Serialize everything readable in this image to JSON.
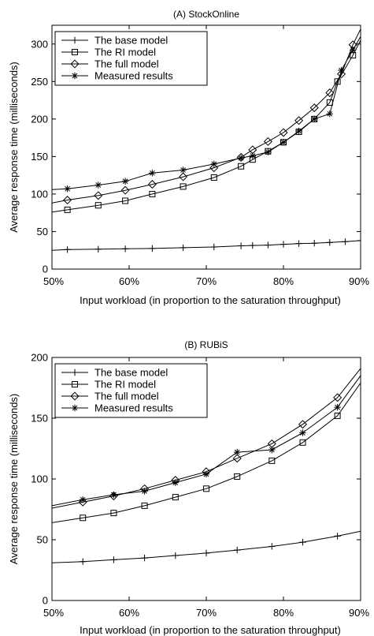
{
  "chart_data": [
    {
      "type": "line",
      "title": "(A) StockOnline",
      "xlabel": "Input workload (in proportion to the saturation throughput)",
      "ylabel": "Average response time (milliseconds)",
      "xlim": [
        50,
        90
      ],
      "ylim": [
        0,
        325
      ],
      "xticks": [
        "50%",
        "60%",
        "70%",
        "80%",
        "90%"
      ],
      "xtick_values": [
        50,
        60,
        70,
        80,
        90
      ],
      "yticks": [
        "0",
        "50",
        "100",
        "150",
        "200",
        "250",
        "300"
      ],
      "ytick_values": [
        0,
        50,
        100,
        150,
        200,
        250,
        300
      ],
      "legend_position": "top-left",
      "series": [
        {
          "name": "The base model",
          "marker": "plus",
          "line_x": [
            50,
            52,
            56,
            59.5,
            63,
            67,
            71,
            74.5,
            76,
            78,
            80,
            82,
            84,
            86,
            88,
            90
          ],
          "line_y": [
            25,
            26,
            26.5,
            27,
            27.5,
            28.5,
            29.5,
            31,
            31.5,
            32,
            33,
            34,
            34.5,
            35.5,
            36.5,
            38
          ],
          "x": [
            52,
            56,
            59.5,
            63,
            67,
            71,
            74.5,
            76,
            78,
            80,
            82,
            84,
            86,
            88,
            90
          ],
          "values": [
            26,
            26.5,
            27,
            27.5,
            28.5,
            29.5,
            31,
            31.5,
            32,
            33,
            34,
            34.5,
            35.5,
            36.5,
            38
          ]
        },
        {
          "name": "The RI model",
          "marker": "square",
          "line_x": [
            50,
            52,
            56,
            59.5,
            63,
            67,
            71,
            74.5,
            76,
            78,
            80,
            82,
            84,
            86,
            87,
            89,
            90
          ],
          "line_y": [
            76,
            79,
            85,
            91,
            100,
            110,
            122,
            137,
            146,
            157,
            169,
            183,
            200,
            222,
            250,
            285,
            305
          ],
          "x": [
            52,
            56,
            59.5,
            63,
            67,
            71,
            74.5,
            76,
            78,
            80,
            82,
            84,
            86,
            87,
            89
          ],
          "values": [
            79,
            85,
            91,
            100,
            110,
            122,
            137,
            146,
            157,
            169,
            183,
            200,
            222,
            250,
            285
          ]
        },
        {
          "name": "The full model",
          "marker": "diamond",
          "line_x": [
            50,
            52,
            56,
            59.5,
            63,
            67,
            71,
            74.5,
            76,
            78,
            80,
            82,
            84,
            86,
            87.5,
            89,
            90
          ],
          "line_y": [
            88,
            92,
            98,
            105,
            113,
            123,
            135,
            149,
            159,
            170,
            182,
            198,
            215,
            235,
            260,
            299,
            320
          ],
          "x": [
            52,
            56,
            59.5,
            63,
            67,
            71,
            74.5,
            76,
            78,
            80,
            82,
            84,
            86,
            87.5,
            89
          ],
          "values": [
            92,
            98,
            105,
            113,
            123,
            135,
            149,
            159,
            170,
            182,
            198,
            215,
            235,
            260,
            299
          ]
        },
        {
          "name": "Measured results",
          "marker": "asterisk",
          "line_x": [
            50,
            52,
            56,
            59.5,
            63,
            67,
            71,
            74.5,
            76,
            78,
            80,
            82,
            84,
            86,
            87.5,
            89,
            90
          ],
          "line_y": [
            106,
            107,
            112,
            117,
            128,
            132,
            140,
            148,
            151,
            156,
            169,
            184,
            200,
            207,
            265,
            292,
            310
          ],
          "x": [
            52,
            56,
            59.5,
            63,
            67,
            71,
            74.5,
            76,
            78,
            80,
            82,
            84,
            86,
            87.5,
            89
          ],
          "values": [
            107,
            112,
            117,
            128,
            132,
            140,
            148,
            151,
            156,
            169,
            184,
            200,
            207,
            265,
            292
          ]
        }
      ]
    },
    {
      "type": "line",
      "title": "(B) RUBiS",
      "xlabel": "Input workload (in proportion to the saturation throughput)",
      "ylabel": "Average response time (milliseconds)",
      "xlim": [
        50,
        90
      ],
      "ylim": [
        0,
        200
      ],
      "xticks": [
        "50%",
        "60%",
        "70%",
        "80%",
        "90%"
      ],
      "xtick_values": [
        50,
        60,
        70,
        80,
        90
      ],
      "yticks": [
        "0",
        "50",
        "100",
        "150",
        "200"
      ],
      "ytick_values": [
        0,
        50,
        100,
        150,
        200
      ],
      "legend_position": "top-left",
      "series": [
        {
          "name": "The base model",
          "marker": "plus",
          "line_x": [
            50,
            54,
            58,
            62,
            66,
            70,
            74,
            78.5,
            82.5,
            87,
            90
          ],
          "line_y": [
            31,
            32,
            33.5,
            35,
            37,
            39,
            41.5,
            44.5,
            48,
            53,
            57
          ],
          "x": [
            54,
            58,
            62,
            66,
            70,
            74,
            78.5,
            82.5,
            87
          ],
          "values": [
            32,
            33.5,
            35,
            37,
            39,
            41.5,
            44.5,
            48,
            53
          ]
        },
        {
          "name": "The RI model",
          "marker": "square",
          "line_x": [
            50,
            54,
            58,
            62,
            66,
            70,
            74,
            78.5,
            82.5,
            87,
            90
          ],
          "line_y": [
            64,
            68,
            72,
            78,
            85,
            92,
            102,
            115,
            130,
            152,
            179
          ],
          "x": [
            54,
            58,
            62,
            66,
            70,
            74,
            78.5,
            82.5,
            87
          ],
          "values": [
            68,
            72,
            78,
            85,
            92,
            102,
            115,
            130,
            152
          ]
        },
        {
          "name": "The full model",
          "marker": "diamond",
          "line_x": [
            50,
            54,
            58,
            62,
            66,
            70,
            74,
            78.5,
            82.5,
            87,
            90
          ],
          "line_y": [
            76,
            81,
            86,
            92,
            99,
            106,
            117,
            129,
            145,
            167,
            191
          ],
          "x": [
            54,
            58,
            62,
            66,
            70,
            74,
            78.5,
            82.5,
            87
          ],
          "values": [
            81,
            86,
            92,
            99,
            106,
            117,
            129,
            145,
            167
          ]
        },
        {
          "name": "Measured results",
          "marker": "asterisk",
          "line_x": [
            50,
            54,
            58,
            62,
            66,
            70,
            74,
            78.5,
            82.5,
            87,
            90
          ],
          "line_y": [
            78,
            83,
            87,
            90,
            97,
            104,
            122,
            124,
            138,
            159,
            185
          ],
          "x": [
            54,
            58,
            62,
            66,
            70,
            74,
            78.5,
            82.5,
            87
          ],
          "values": [
            83,
            87,
            90,
            97,
            104,
            122,
            124,
            138,
            159
          ]
        }
      ]
    }
  ]
}
